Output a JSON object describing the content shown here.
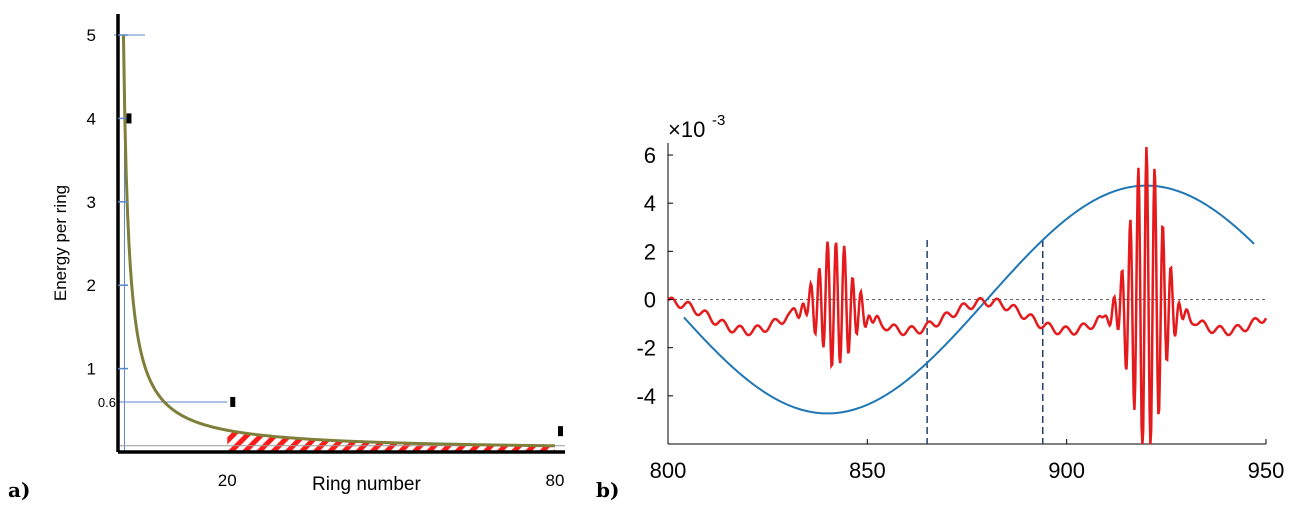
{
  "figure": {
    "panel_a_label": "a)",
    "panel_b_label": "b)"
  },
  "chart_data": [
    {
      "type": "line",
      "panel": "a",
      "title": "",
      "xlabel": "Ring number",
      "ylabel": "Energy per ring",
      "xlim": [
        0,
        80
      ],
      "ylim": [
        0,
        5
      ],
      "grid": false,
      "y_ticks": [
        1,
        2,
        3,
        4,
        5
      ],
      "y_tick_labels": [
        "1",
        "2",
        "3",
        "4",
        "5"
      ],
      "x_tick_labels": [
        {
          "value": 20,
          "label": "20"
        },
        {
          "value": 80,
          "label": "80"
        }
      ],
      "extra_y_label": {
        "value": 0.6,
        "label": "0.6"
      },
      "curve": {
        "color": "#7f7f3a",
        "x_start": 1,
        "x_end": 80,
        "equation": "y = 5 * (1 - e^(-k)) / (1 - e^(-k x)), k = 0.0045"
      },
      "highlight_points": [
        {
          "x": 1,
          "y": 4
        },
        {
          "x": 20,
          "y": 0.6
        },
        {
          "x": 80,
          "y": 0.25
        }
      ],
      "shaded_region": {
        "x_start": 20,
        "x_end": 80,
        "fill": "red hatched"
      }
    },
    {
      "type": "line",
      "panel": "b",
      "title": "",
      "xlabel": "",
      "ylabel": "",
      "xlim": [
        800,
        950
      ],
      "ylim": [
        -0.006,
        0.0065
      ],
      "y_exponent_label": "×10",
      "y_exponent_power": "-3",
      "x_ticks": [
        800,
        850,
        900,
        950
      ],
      "x_tick_labels": [
        "800",
        "850",
        "900",
        "950"
      ],
      "y_ticks": [
        -4,
        -2,
        0,
        2,
        4,
        6
      ],
      "y_tick_labels": [
        "-4",
        "-2",
        "0",
        "2",
        "4",
        "6"
      ],
      "grid": false,
      "zero_line": true,
      "vertical_markers": [
        865,
        894
      ],
      "series": [
        {
          "color": "#1f77b4",
          "equation": "y = 0.00473 * cos(2*pi*(x-920)/160)",
          "x_start": 804,
          "x_end": 947
        },
        {
          "color": "#e41a1c",
          "description_equation": "slow oscillation + gaussian-modulated bursts at 840 and 920",
          "x_start": 800,
          "x_end": 950
        }
      ]
    }
  ]
}
